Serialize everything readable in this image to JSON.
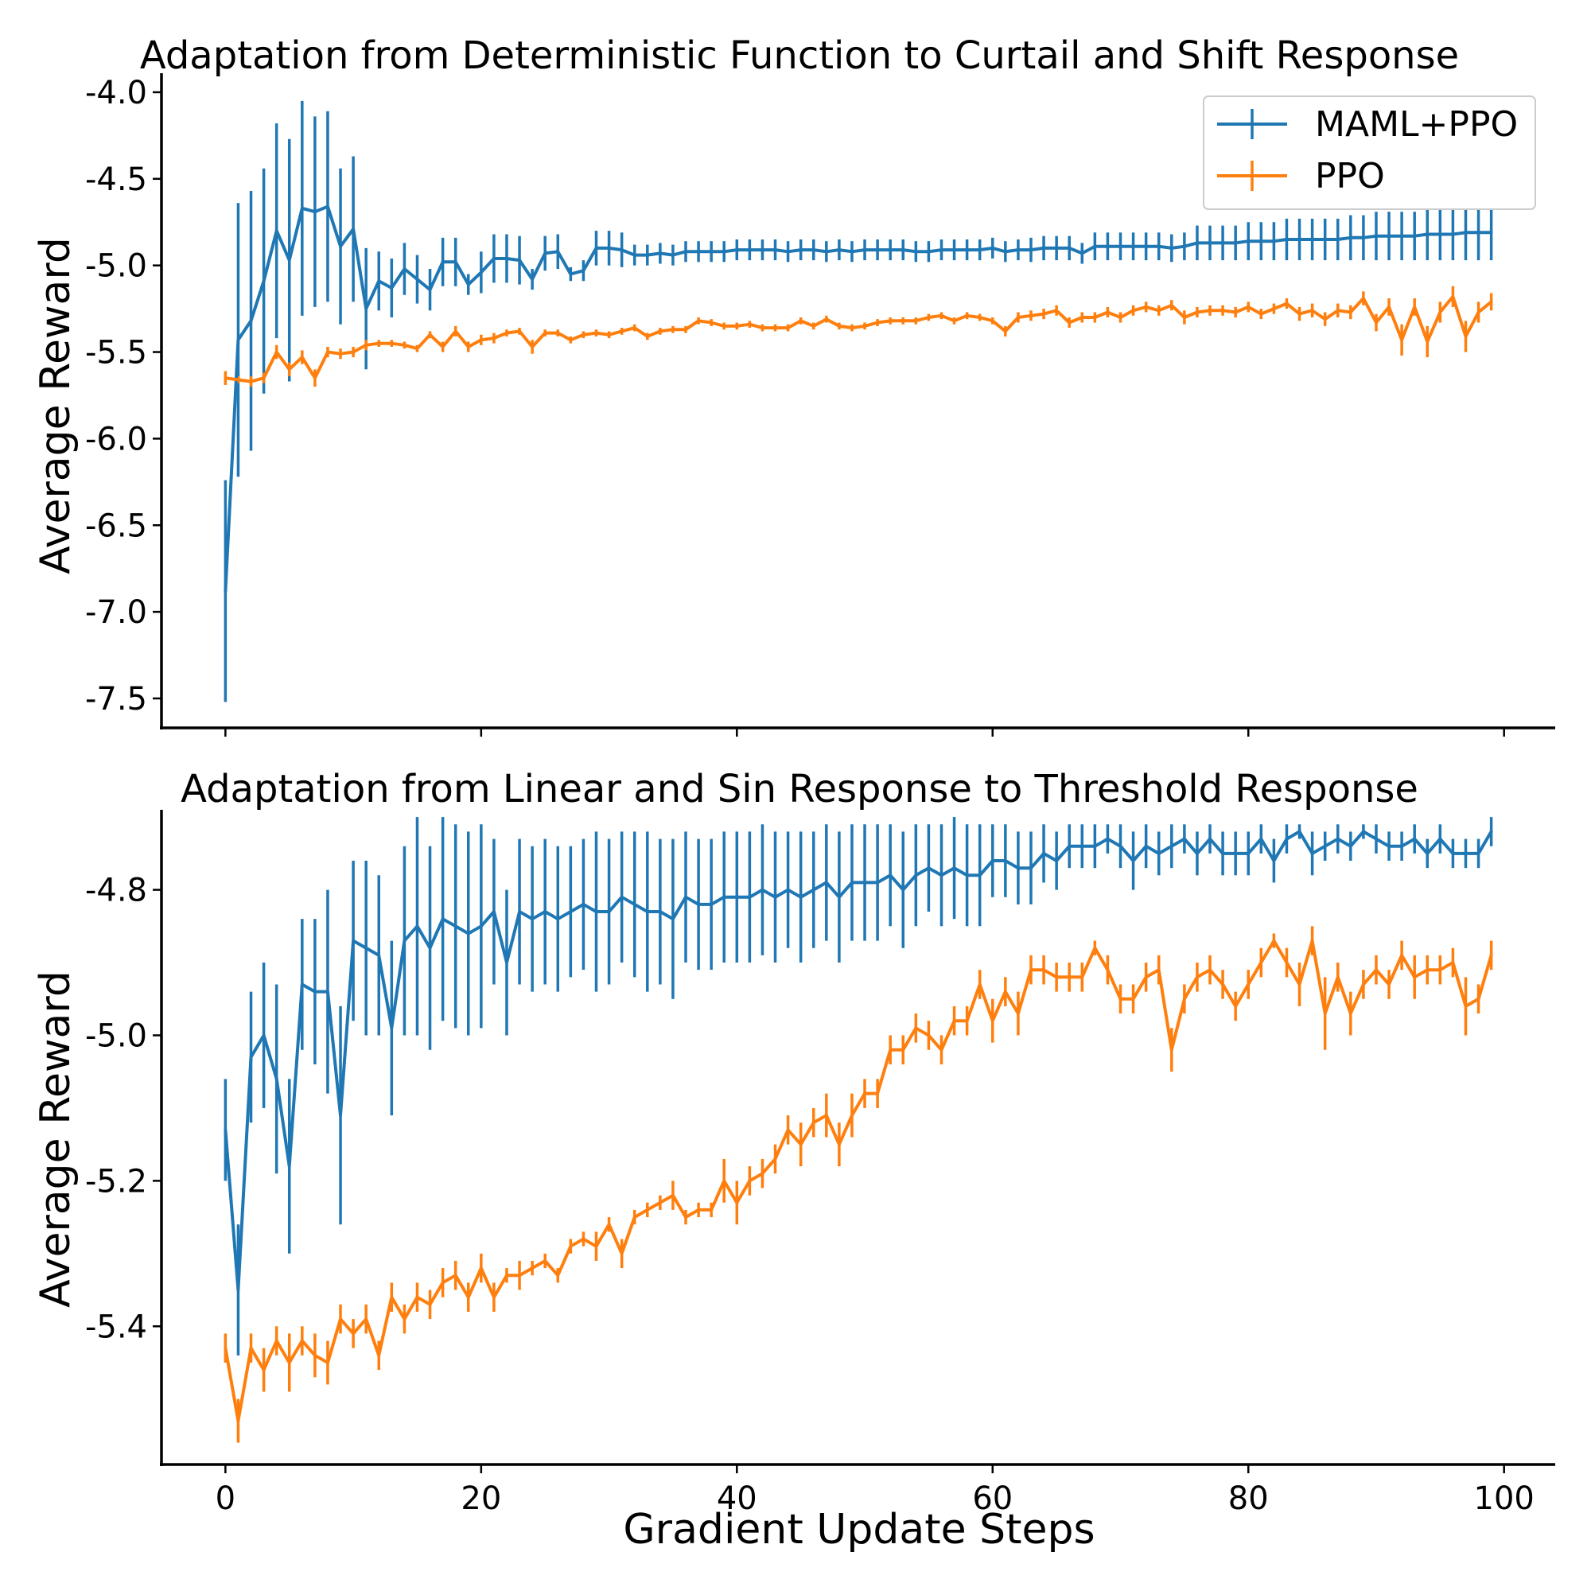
{
  "chart_data": [
    {
      "type": "line",
      "title": "Adaptation from Deterministic Function to Curtail and Shift Response",
      "xlabel": "",
      "ylabel": "Average Reward",
      "xlim": [
        -5,
        104
      ],
      "ylim": [
        -7.67,
        -3.89
      ],
      "xticks": [
        0,
        20,
        40,
        60,
        80,
        100
      ],
      "yticks": [
        -7.5,
        -7.0,
        -6.5,
        -6.0,
        -5.5,
        -5.0,
        -4.5,
        -4.0
      ],
      "ytick_labels": [
        "-7.5",
        "-7.0",
        "-6.5",
        "-6.0",
        "-5.5",
        "-5.0",
        "-4.5",
        "-4.0"
      ],
      "grid": false,
      "legend": {
        "position": "top-right",
        "entries": [
          "MAML+PPO",
          "PPO"
        ]
      },
      "x_start": 0,
      "series": [
        {
          "name": "MAML+PPO",
          "color": "#1f77b4",
          "values": [
            -6.88,
            -5.43,
            -5.32,
            -5.09,
            -4.8,
            -4.97,
            -4.67,
            -4.69,
            -4.66,
            -4.89,
            -4.79,
            -5.25,
            -5.09,
            -5.13,
            -5.02,
            -5.08,
            -5.14,
            -4.98,
            -4.98,
            -5.11,
            -5.04,
            -4.96,
            -4.96,
            -4.97,
            -5.08,
            -4.93,
            -4.92,
            -5.05,
            -5.03,
            -4.9,
            -4.9,
            -4.91,
            -4.94,
            -4.94,
            -4.93,
            -4.94,
            -4.92,
            -4.92,
            -4.92,
            -4.92,
            -4.91,
            -4.91,
            -4.91,
            -4.91,
            -4.92,
            -4.91,
            -4.91,
            -4.92,
            -4.91,
            -4.92,
            -4.91,
            -4.91,
            -4.91,
            -4.91,
            -4.92,
            -4.92,
            -4.91,
            -4.91,
            -4.91,
            -4.91,
            -4.9,
            -4.92,
            -4.91,
            -4.91,
            -4.9,
            -4.9,
            -4.9,
            -4.93,
            -4.89,
            -4.89,
            -4.89,
            -4.89,
            -4.89,
            -4.89,
            -4.9,
            -4.89,
            -4.87,
            -4.87,
            -4.87,
            -4.87,
            -4.86,
            -4.86,
            -4.86,
            -4.85,
            -4.85,
            -4.85,
            -4.85,
            -4.85,
            -4.84,
            -4.84,
            -4.83,
            -4.83,
            -4.83,
            -4.83,
            -4.82,
            -4.82,
            -4.82,
            -4.81,
            -4.81,
            -4.81
          ],
          "errors": [
            0.64,
            0.79,
            0.75,
            0.65,
            0.62,
            0.7,
            0.62,
            0.55,
            0.55,
            0.45,
            0.42,
            0.35,
            0.17,
            0.17,
            0.15,
            0.14,
            0.12,
            0.14,
            0.14,
            0.06,
            0.12,
            0.14,
            0.14,
            0.14,
            0.06,
            0.1,
            0.1,
            0.04,
            0.06,
            0.1,
            0.1,
            0.1,
            0.06,
            0.06,
            0.06,
            0.06,
            0.06,
            0.06,
            0.06,
            0.06,
            0.06,
            0.06,
            0.06,
            0.06,
            0.06,
            0.06,
            0.06,
            0.06,
            0.06,
            0.06,
            0.06,
            0.06,
            0.06,
            0.06,
            0.06,
            0.06,
            0.06,
            0.06,
            0.06,
            0.06,
            0.06,
            0.06,
            0.06,
            0.07,
            0.07,
            0.07,
            0.07,
            0.06,
            0.08,
            0.08,
            0.08,
            0.08,
            0.08,
            0.08,
            0.08,
            0.08,
            0.1,
            0.1,
            0.1,
            0.1,
            0.11,
            0.11,
            0.11,
            0.12,
            0.12,
            0.12,
            0.12,
            0.12,
            0.13,
            0.13,
            0.14,
            0.14,
            0.14,
            0.14,
            0.15,
            0.15,
            0.15,
            0.16,
            0.16,
            0.16
          ]
        },
        {
          "name": "PPO",
          "color": "#ff7f0e",
          "values": [
            -5.65,
            -5.66,
            -5.67,
            -5.65,
            -5.5,
            -5.6,
            -5.53,
            -5.65,
            -5.5,
            -5.51,
            -5.5,
            -5.46,
            -5.45,
            -5.45,
            -5.46,
            -5.48,
            -5.4,
            -5.47,
            -5.38,
            -5.47,
            -5.43,
            -5.42,
            -5.39,
            -5.38,
            -5.47,
            -5.39,
            -5.39,
            -5.43,
            -5.4,
            -5.39,
            -5.4,
            -5.38,
            -5.36,
            -5.41,
            -5.38,
            -5.37,
            -5.37,
            -5.32,
            -5.33,
            -5.35,
            -5.35,
            -5.34,
            -5.36,
            -5.36,
            -5.36,
            -5.32,
            -5.35,
            -5.31,
            -5.35,
            -5.36,
            -5.35,
            -5.33,
            -5.32,
            -5.32,
            -5.32,
            -5.3,
            -5.29,
            -5.32,
            -5.29,
            -5.3,
            -5.32,
            -5.38,
            -5.3,
            -5.29,
            -5.28,
            -5.26,
            -5.33,
            -5.3,
            -5.3,
            -5.27,
            -5.3,
            -5.26,
            -5.24,
            -5.26,
            -5.23,
            -5.3,
            -5.27,
            -5.26,
            -5.26,
            -5.27,
            -5.24,
            -5.28,
            -5.25,
            -5.22,
            -5.28,
            -5.26,
            -5.31,
            -5.26,
            -5.27,
            -5.19,
            -5.33,
            -5.24,
            -5.43,
            -5.24,
            -5.44,
            -5.27,
            -5.18,
            -5.41,
            -5.27,
            -5.21
          ],
          "errors": [
            0.04,
            0.02,
            0.03,
            0.03,
            0.04,
            0.04,
            0.04,
            0.05,
            0.03,
            0.03,
            0.03,
            0.03,
            0.02,
            0.02,
            0.02,
            0.02,
            0.02,
            0.03,
            0.03,
            0.03,
            0.03,
            0.03,
            0.02,
            0.02,
            0.04,
            0.02,
            0.02,
            0.02,
            0.02,
            0.02,
            0.02,
            0.02,
            0.02,
            0.02,
            0.02,
            0.02,
            0.02,
            0.02,
            0.02,
            0.02,
            0.02,
            0.02,
            0.02,
            0.02,
            0.02,
            0.02,
            0.02,
            0.02,
            0.02,
            0.02,
            0.02,
            0.02,
            0.02,
            0.02,
            0.02,
            0.02,
            0.02,
            0.02,
            0.02,
            0.02,
            0.02,
            0.03,
            0.03,
            0.03,
            0.03,
            0.03,
            0.03,
            0.03,
            0.03,
            0.03,
            0.03,
            0.03,
            0.03,
            0.03,
            0.03,
            0.04,
            0.03,
            0.03,
            0.03,
            0.03,
            0.03,
            0.03,
            0.03,
            0.03,
            0.04,
            0.04,
            0.04,
            0.04,
            0.04,
            0.04,
            0.05,
            0.05,
            0.09,
            0.05,
            0.09,
            0.06,
            0.06,
            0.09,
            0.06,
            0.05
          ]
        }
      ]
    },
    {
      "type": "line",
      "title": "Adaptation from Linear and Sin Response to Threshold Response",
      "xlabel": "Gradient Update Steps",
      "ylabel": "Average Reward",
      "xlim": [
        -5,
        104
      ],
      "ylim": [
        -5.59,
        -4.69
      ],
      "xticks": [
        0,
        20,
        40,
        60,
        80,
        100
      ],
      "xtick_labels": [
        "0",
        "20",
        "40",
        "60",
        "80",
        "100"
      ],
      "yticks": [
        -5.4,
        -5.2,
        -5.0,
        -4.8
      ],
      "ytick_labels": [
        "-5.4",
        "-5.2",
        "-5.0",
        "-4.8"
      ],
      "grid": false,
      "x_start": 0,
      "series": [
        {
          "name": "MAML+PPO",
          "color": "#1f77b4",
          "values": [
            -5.13,
            -5.35,
            -5.03,
            -5.0,
            -5.06,
            -5.18,
            -4.93,
            -4.94,
            -4.94,
            -5.11,
            -4.87,
            -4.88,
            -4.89,
            -4.99,
            -4.87,
            -4.85,
            -4.88,
            -4.84,
            -4.85,
            -4.86,
            -4.85,
            -4.83,
            -4.9,
            -4.83,
            -4.84,
            -4.83,
            -4.84,
            -4.83,
            -4.82,
            -4.83,
            -4.83,
            -4.81,
            -4.82,
            -4.83,
            -4.83,
            -4.84,
            -4.81,
            -4.82,
            -4.82,
            -4.81,
            -4.81,
            -4.81,
            -4.8,
            -4.81,
            -4.8,
            -4.81,
            -4.8,
            -4.79,
            -4.81,
            -4.79,
            -4.79,
            -4.79,
            -4.78,
            -4.8,
            -4.78,
            -4.77,
            -4.78,
            -4.77,
            -4.78,
            -4.78,
            -4.76,
            -4.76,
            -4.77,
            -4.77,
            -4.75,
            -4.76,
            -4.74,
            -4.74,
            -4.74,
            -4.73,
            -4.74,
            -4.76,
            -4.74,
            -4.75,
            -4.74,
            -4.73,
            -4.75,
            -4.73,
            -4.75,
            -4.75,
            -4.75,
            -4.73,
            -4.76,
            -4.73,
            -4.72,
            -4.75,
            -4.74,
            -4.73,
            -4.74,
            -4.72,
            -4.73,
            -4.74,
            -4.74,
            -4.73,
            -4.75,
            -4.73,
            -4.75,
            -4.75,
            -4.75,
            -4.72
          ],
          "errors": [
            0.07,
            0.09,
            0.09,
            0.1,
            0.13,
            0.12,
            0.09,
            0.1,
            0.14,
            0.15,
            0.11,
            0.12,
            0.11,
            0.12,
            0.13,
            0.15,
            0.14,
            0.14,
            0.14,
            0.14,
            0.14,
            0.1,
            0.1,
            0.1,
            0.1,
            0.1,
            0.1,
            0.09,
            0.09,
            0.11,
            0.1,
            0.09,
            0.1,
            0.11,
            0.1,
            0.11,
            0.09,
            0.09,
            0.09,
            0.09,
            0.09,
            0.09,
            0.09,
            0.09,
            0.08,
            0.09,
            0.08,
            0.08,
            0.09,
            0.08,
            0.08,
            0.08,
            0.07,
            0.08,
            0.07,
            0.06,
            0.07,
            0.07,
            0.07,
            0.07,
            0.05,
            0.05,
            0.05,
            0.05,
            0.04,
            0.04,
            0.03,
            0.03,
            0.03,
            0.02,
            0.03,
            0.04,
            0.03,
            0.03,
            0.03,
            0.02,
            0.03,
            0.02,
            0.03,
            0.03,
            0.03,
            0.02,
            0.03,
            0.02,
            0.01,
            0.03,
            0.02,
            0.02,
            0.02,
            0.01,
            0.02,
            0.02,
            0.02,
            0.02,
            0.02,
            0.02,
            0.02,
            0.02,
            0.02,
            0.02
          ]
        },
        {
          "name": "PPO",
          "color": "#ff7f0e",
          "values": [
            -5.43,
            -5.53,
            -5.43,
            -5.46,
            -5.42,
            -5.45,
            -5.42,
            -5.44,
            -5.45,
            -5.39,
            -5.41,
            -5.39,
            -5.44,
            -5.36,
            -5.39,
            -5.36,
            -5.37,
            -5.34,
            -5.33,
            -5.36,
            -5.32,
            -5.36,
            -5.33,
            -5.33,
            -5.32,
            -5.31,
            -5.33,
            -5.29,
            -5.28,
            -5.29,
            -5.26,
            -5.3,
            -5.25,
            -5.24,
            -5.23,
            -5.22,
            -5.25,
            -5.24,
            -5.24,
            -5.2,
            -5.23,
            -5.2,
            -5.19,
            -5.17,
            -5.13,
            -5.15,
            -5.12,
            -5.11,
            -5.15,
            -5.11,
            -5.08,
            -5.08,
            -5.02,
            -5.02,
            -4.99,
            -5.0,
            -5.02,
            -4.98,
            -4.98,
            -4.93,
            -4.98,
            -4.94,
            -4.97,
            -4.91,
            -4.91,
            -4.92,
            -4.92,
            -4.92,
            -4.88,
            -4.91,
            -4.95,
            -4.95,
            -4.92,
            -4.91,
            -5.02,
            -4.95,
            -4.92,
            -4.91,
            -4.93,
            -4.96,
            -4.93,
            -4.9,
            -4.87,
            -4.9,
            -4.93,
            -4.87,
            -4.97,
            -4.92,
            -4.97,
            -4.93,
            -4.91,
            -4.93,
            -4.89,
            -4.92,
            -4.91,
            -4.91,
            -4.9,
            -4.96,
            -4.95,
            -4.89
          ],
          "errors": [
            0.02,
            0.03,
            0.02,
            0.03,
            0.02,
            0.04,
            0.02,
            0.03,
            0.03,
            0.02,
            0.02,
            0.02,
            0.02,
            0.02,
            0.02,
            0.02,
            0.02,
            0.02,
            0.02,
            0.02,
            0.02,
            0.02,
            0.01,
            0.02,
            0.01,
            0.01,
            0.01,
            0.01,
            0.01,
            0.02,
            0.01,
            0.02,
            0.01,
            0.01,
            0.01,
            0.02,
            0.01,
            0.01,
            0.01,
            0.03,
            0.03,
            0.02,
            0.02,
            0.02,
            0.02,
            0.03,
            0.02,
            0.03,
            0.03,
            0.03,
            0.02,
            0.02,
            0.02,
            0.02,
            0.02,
            0.02,
            0.02,
            0.02,
            0.02,
            0.02,
            0.03,
            0.02,
            0.03,
            0.02,
            0.02,
            0.02,
            0.02,
            0.02,
            0.01,
            0.02,
            0.02,
            0.02,
            0.02,
            0.02,
            0.03,
            0.02,
            0.02,
            0.02,
            0.02,
            0.02,
            0.02,
            0.02,
            0.01,
            0.02,
            0.03,
            0.02,
            0.05,
            0.02,
            0.03,
            0.02,
            0.02,
            0.02,
            0.02,
            0.03,
            0.02,
            0.02,
            0.02,
            0.04,
            0.02,
            0.02
          ]
        }
      ]
    }
  ]
}
